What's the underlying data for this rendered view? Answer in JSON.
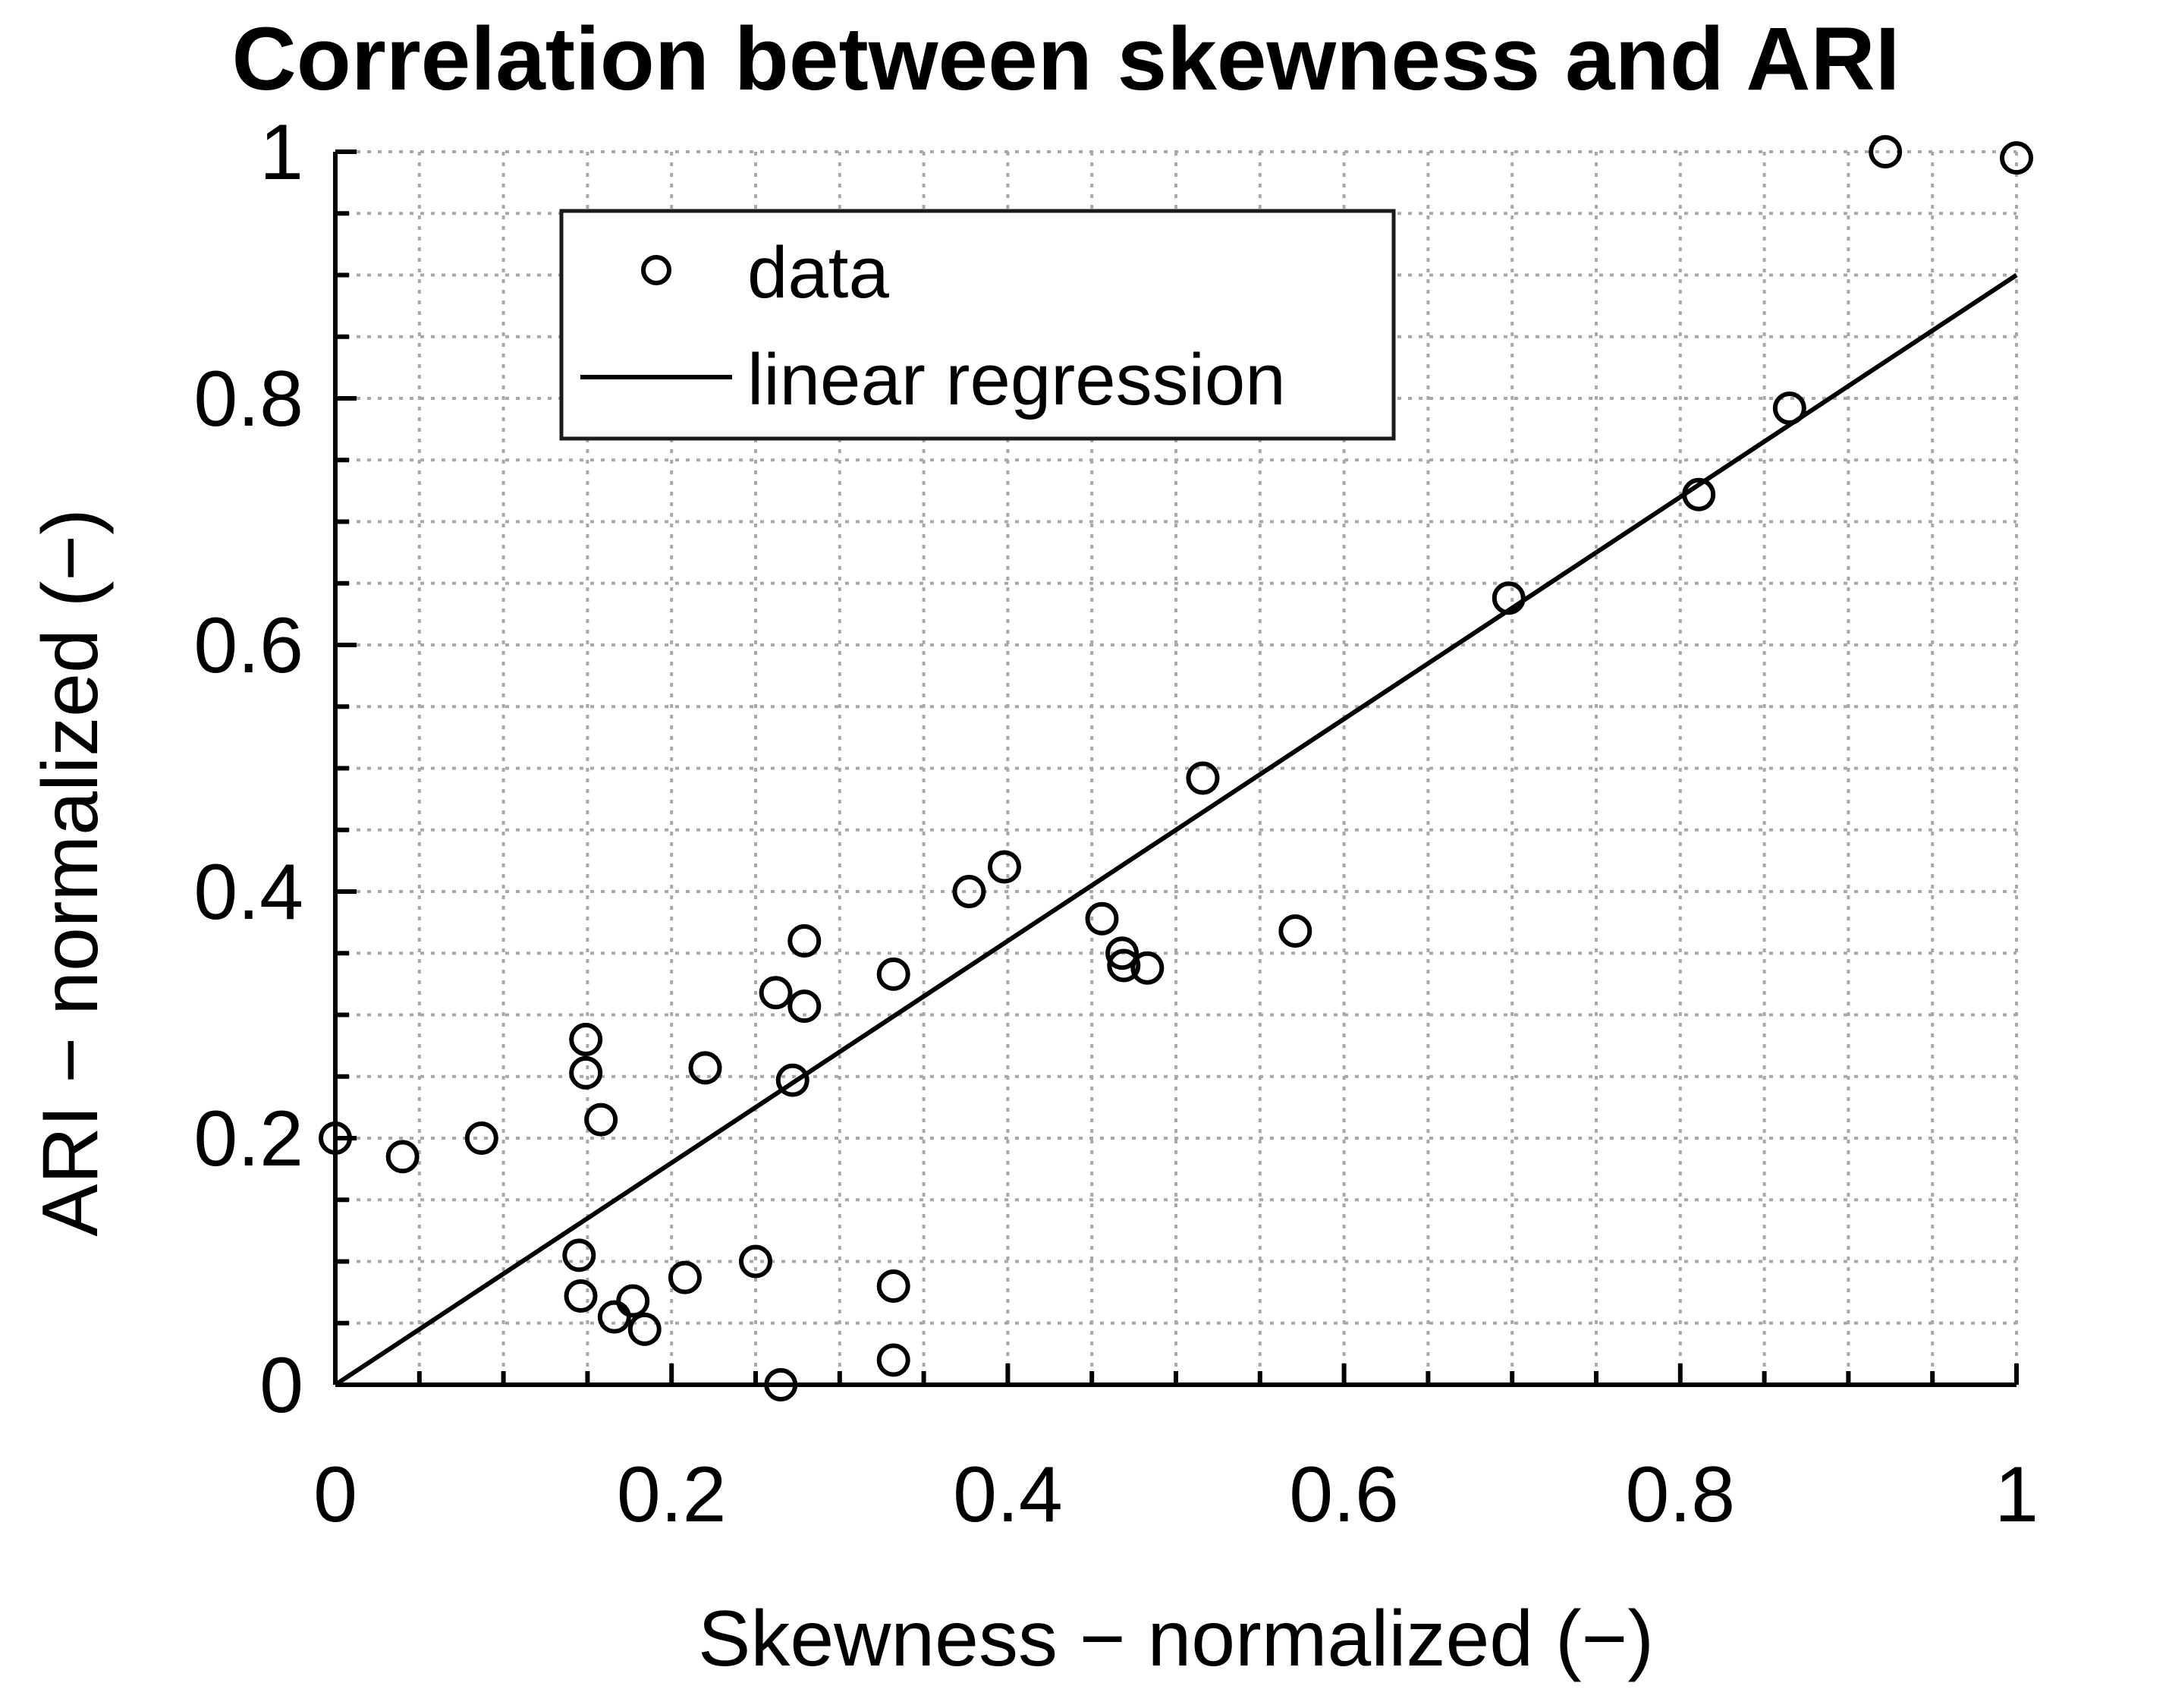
{
  "chart_data": {
    "type": "scatter",
    "title": "Correlation between skewness and ARI",
    "xlabel": "Skewness − normalized (−)",
    "ylabel": "ARI − normalized (−)",
    "xlim": [
      0,
      1
    ],
    "ylim": [
      0,
      1
    ],
    "x_ticks": [
      "0",
      "0.2",
      "0.4",
      "0.6",
      "0.8",
      "1"
    ],
    "y_ticks": [
      "0",
      "0.2",
      "0.4",
      "0.6",
      "0.8",
      "1"
    ],
    "grid": true,
    "legend_position": "top-left",
    "legend": [
      "data",
      "linear regression"
    ],
    "series": [
      {
        "name": "data",
        "type": "scatter",
        "points": [
          [
            0.0,
            0.2
          ],
          [
            0.04,
            0.185
          ],
          [
            0.087,
            0.2
          ],
          [
            0.145,
            0.105
          ],
          [
            0.146,
            0.072
          ],
          [
            0.149,
            0.28
          ],
          [
            0.149,
            0.253
          ],
          [
            0.158,
            0.215
          ],
          [
            0.166,
            0.055
          ],
          [
            0.177,
            0.068
          ],
          [
            0.184,
            0.045
          ],
          [
            0.208,
            0.087
          ],
          [
            0.22,
            0.257
          ],
          [
            0.25,
            0.1
          ],
          [
            0.262,
            0.318
          ],
          [
            0.265,
            0.0
          ],
          [
            0.272,
            0.247
          ],
          [
            0.279,
            0.36
          ],
          [
            0.279,
            0.307
          ],
          [
            0.332,
            0.333
          ],
          [
            0.332,
            0.08
          ],
          [
            0.332,
            0.02
          ],
          [
            0.377,
            0.4
          ],
          [
            0.398,
            0.42
          ],
          [
            0.456,
            0.378
          ],
          [
            0.468,
            0.35
          ],
          [
            0.469,
            0.34
          ],
          [
            0.483,
            0.338
          ],
          [
            0.516,
            0.492
          ],
          [
            0.571,
            0.368
          ],
          [
            0.698,
            0.638
          ],
          [
            0.811,
            0.722
          ],
          [
            0.865,
            0.792
          ],
          [
            0.922,
            1.0
          ],
          [
            1.0,
            0.995
          ]
        ]
      },
      {
        "name": "linear regression",
        "type": "line",
        "points": [
          [
            0,
            0
          ],
          [
            1,
            0.9
          ]
        ]
      }
    ]
  }
}
